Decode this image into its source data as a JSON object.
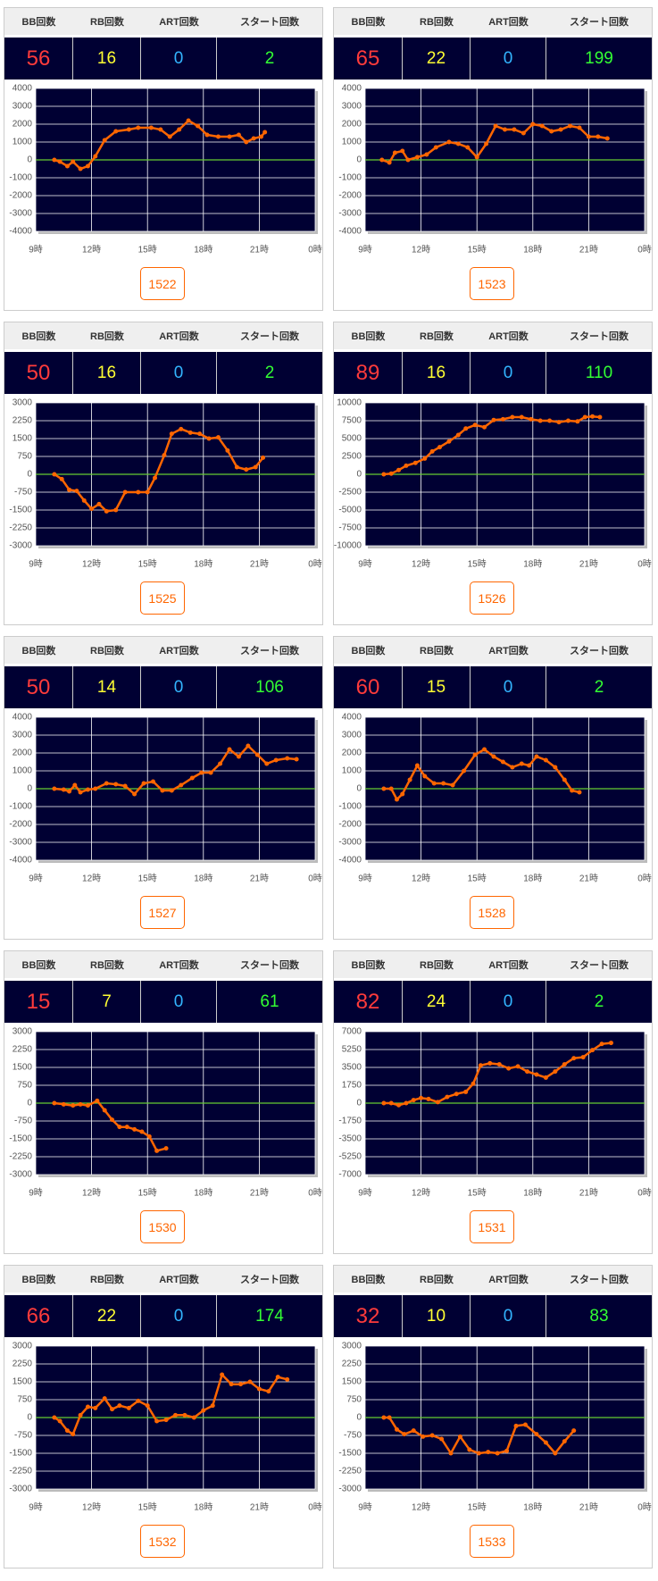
{
  "headers": [
    "BB回数",
    "RB回数",
    "ART回数",
    "スタート回数"
  ],
  "stat_colors": [
    "#ff3b3b",
    "#ffff33",
    "#33b5ff",
    "#33ff33"
  ],
  "line_color": "#ff6600",
  "plot_color": "#000033",
  "zero_line_color": "#66cc33",
  "xlim": [
    9,
    24
  ],
  "xticks": [
    {
      "value": 9,
      "label": "9時"
    },
    {
      "value": 12,
      "label": "12時"
    },
    {
      "value": 15,
      "label": "15時"
    },
    {
      "value": 18,
      "label": "18時"
    },
    {
      "value": 21,
      "label": "21時"
    },
    {
      "value": 24,
      "label": "0時"
    }
  ],
  "cards": [
    {
      "stats": [
        56,
        16,
        0,
        2
      ],
      "button": "1522",
      "chart": {
        "type": "line",
        "ylim": [
          -4000,
          4000
        ],
        "yticks": [
          -4000,
          -3000,
          -2000,
          -1000,
          0,
          1000,
          2000,
          3000,
          4000
        ],
        "x": [
          10,
          10.3,
          10.7,
          11,
          11.4,
          11.8,
          12.2,
          12.7,
          13.3,
          14,
          14.5,
          15.2,
          15.7,
          16.2,
          16.7,
          17.2,
          17.7,
          18.2,
          18.8,
          19.4,
          19.9,
          20.3,
          20.7,
          21.1,
          21.3
        ],
        "values": [
          0,
          -100,
          -350,
          -100,
          -500,
          -350,
          200,
          1100,
          1600,
          1700,
          1800,
          1800,
          1700,
          1300,
          1700,
          2200,
          1900,
          1400,
          1300,
          1300,
          1400,
          1000,
          1200,
          1300,
          1550
        ]
      }
    },
    {
      "stats": [
        65,
        22,
        0,
        199
      ],
      "button": "1523",
      "chart": {
        "type": "line",
        "ylim": [
          -4000,
          4000
        ],
        "yticks": [
          -4000,
          -3000,
          -2000,
          -1000,
          0,
          1000,
          2000,
          3000,
          4000
        ],
        "x": [
          9.9,
          10.3,
          10.6,
          11,
          11.3,
          11.8,
          12.3,
          12.8,
          13.5,
          14,
          14.5,
          15,
          15.5,
          16,
          16.5,
          17,
          17.5,
          18,
          18.5,
          19,
          19.5,
          20,
          20.5,
          21,
          21.5,
          22
        ],
        "values": [
          0,
          -150,
          400,
          500,
          0,
          150,
          300,
          700,
          1000,
          900,
          700,
          150,
          900,
          1900,
          1700,
          1700,
          1500,
          2000,
          1900,
          1600,
          1700,
          1900,
          1800,
          1300,
          1300,
          1200
        ]
      }
    },
    {
      "stats": [
        50,
        16,
        0,
        2
      ],
      "button": "1525",
      "chart": {
        "type": "line",
        "ylim": [
          -3000,
          3000
        ],
        "yticks": [
          -3000,
          -2250,
          -1500,
          -750,
          0,
          750,
          1500,
          2250,
          3000
        ],
        "x": [
          10,
          10.4,
          10.8,
          11.2,
          11.6,
          12,
          12.4,
          12.8,
          13.3,
          13.8,
          14.5,
          15,
          15.4,
          15.9,
          16.3,
          16.8,
          17.3,
          17.8,
          18.3,
          18.8,
          19.3,
          19.8,
          20.3,
          20.8,
          21.2
        ],
        "values": [
          0,
          -200,
          -650,
          -700,
          -1100,
          -1450,
          -1250,
          -1550,
          -1500,
          -750,
          -750,
          -750,
          -150,
          800,
          1700,
          1900,
          1750,
          1700,
          1500,
          1550,
          1000,
          300,
          200,
          300,
          700
        ]
      }
    },
    {
      "stats": [
        89,
        16,
        0,
        110
      ],
      "button": "1526",
      "chart": {
        "type": "line",
        "ylim": [
          -10000,
          10000
        ],
        "yticks": [
          -10000,
          -7500,
          -5000,
          -2500,
          0,
          2500,
          5000,
          7500,
          10000
        ],
        "x": [
          10,
          10.4,
          10.8,
          11.2,
          11.7,
          12.2,
          12.6,
          13,
          13.5,
          14,
          14.4,
          14.9,
          15.4,
          15.9,
          16.4,
          16.9,
          17.4,
          17.9,
          18.4,
          18.9,
          19.4,
          19.9,
          20.4,
          20.8,
          21.2,
          21.6
        ],
        "values": [
          0,
          100,
          600,
          1200,
          1600,
          2200,
          3200,
          3800,
          4600,
          5500,
          6400,
          6900,
          6600,
          7600,
          7700,
          8000,
          8000,
          7700,
          7500,
          7500,
          7300,
          7500,
          7400,
          8000,
          8100,
          8000
        ]
      }
    },
    {
      "stats": [
        50,
        14,
        0,
        106
      ],
      "button": "1527",
      "chart": {
        "type": "line",
        "ylim": [
          -4000,
          4000
        ],
        "yticks": [
          -4000,
          -3000,
          -2000,
          -1000,
          0,
          1000,
          2000,
          3000,
          4000
        ],
        "x": [
          10,
          10.5,
          10.8,
          11.1,
          11.4,
          11.8,
          12.2,
          12.8,
          13.3,
          13.8,
          14.3,
          14.8,
          15.3,
          15.8,
          16.3,
          16.8,
          17.4,
          17.9,
          18.4,
          18.9,
          19.4,
          19.9,
          20.4,
          20.9,
          21.4,
          21.9,
          22.5,
          23
        ],
        "values": [
          0,
          -50,
          -150,
          200,
          -200,
          -50,
          0,
          300,
          250,
          150,
          -300,
          300,
          400,
          -100,
          -100,
          200,
          600,
          900,
          900,
          1400,
          2200,
          1800,
          2400,
          1900,
          1400,
          1600,
          1700,
          1650
        ]
      }
    },
    {
      "stats": [
        60,
        15,
        0,
        2
      ],
      "button": "1528",
      "chart": {
        "type": "line",
        "ylim": [
          -4000,
          4000
        ],
        "yticks": [
          -4000,
          -3000,
          -2000,
          -1000,
          0,
          1000,
          2000,
          3000,
          4000
        ],
        "x": [
          10,
          10.4,
          10.7,
          11,
          11.4,
          11.8,
          12.2,
          12.7,
          13.2,
          13.7,
          14.3,
          14.9,
          15.4,
          15.9,
          16.4,
          16.9,
          17.4,
          17.8,
          18.2,
          18.7,
          19.2,
          19.7,
          20.1,
          20.5
        ],
        "values": [
          0,
          0,
          -600,
          -300,
          500,
          1300,
          700,
          300,
          300,
          200,
          1000,
          1900,
          2200,
          1800,
          1500,
          1200,
          1400,
          1300,
          1800,
          1600,
          1200,
          500,
          -100,
          -200
        ]
      }
    },
    {
      "stats": [
        15,
        7,
        0,
        61
      ],
      "button": "1530",
      "chart": {
        "type": "line",
        "ylim": [
          -3000,
          3000
        ],
        "yticks": [
          -3000,
          -2250,
          -1500,
          -750,
          0,
          750,
          1500,
          2250,
          3000
        ],
        "x": [
          10,
          10.5,
          11,
          11.4,
          11.8,
          12.3,
          12.7,
          13.1,
          13.5,
          13.9,
          14.3,
          14.7,
          15.1,
          15.5,
          16
        ],
        "values": [
          0,
          -50,
          -100,
          -50,
          -100,
          100,
          -300,
          -700,
          -1000,
          -1000,
          -1100,
          -1200,
          -1400,
          -2000,
          -1900
        ]
      }
    },
    {
      "stats": [
        82,
        24,
        0,
        2
      ],
      "button": "1531",
      "chart": {
        "type": "line",
        "ylim": [
          -7000,
          7000
        ],
        "yticks": [
          -7000,
          -5250,
          -3500,
          -1750,
          0,
          1750,
          3500,
          5250,
          7000
        ],
        "x": [
          10,
          10.4,
          10.8,
          11.2,
          11.6,
          12,
          12.4,
          12.9,
          13.4,
          13.9,
          14.4,
          14.8,
          15.2,
          15.7,
          16.2,
          16.7,
          17.2,
          17.7,
          18.2,
          18.7,
          19.2,
          19.7,
          20.2,
          20.7,
          21.2,
          21.7,
          22.2
        ],
        "values": [
          0,
          0,
          -200,
          0,
          300,
          500,
          400,
          100,
          600,
          900,
          1100,
          1900,
          3700,
          3900,
          3800,
          3400,
          3600,
          3100,
          2800,
          2500,
          3100,
          3800,
          4400,
          4500,
          5200,
          5800,
          5900
        ]
      }
    },
    {
      "stats": [
        66,
        22,
        0,
        174
      ],
      "button": "1532",
      "chart": {
        "type": "line",
        "ylim": [
          -3000,
          3000
        ],
        "yticks": [
          -3000,
          -2250,
          -1500,
          -750,
          0,
          750,
          1500,
          2250,
          3000
        ],
        "x": [
          10,
          10.3,
          10.7,
          11,
          11.4,
          11.8,
          12.2,
          12.7,
          13.1,
          13.5,
          14,
          14.5,
          15,
          15.5,
          16,
          16.5,
          17,
          17.5,
          18,
          18.5,
          19,
          19.5,
          20,
          20.5,
          21,
          21.5,
          22,
          22.5
        ],
        "values": [
          0,
          -150,
          -550,
          -700,
          100,
          450,
          400,
          800,
          350,
          500,
          400,
          700,
          500,
          -150,
          -100,
          100,
          100,
          0,
          300,
          500,
          1800,
          1400,
          1400,
          1500,
          1200,
          1100,
          1700,
          1600
        ]
      }
    },
    {
      "stats": [
        32,
        10,
        0,
        83
      ],
      "button": "1533",
      "chart": {
        "type": "line",
        "ylim": [
          -3000,
          3000
        ],
        "yticks": [
          -3000,
          -2250,
          -1500,
          -750,
          0,
          750,
          1500,
          2250,
          3000
        ],
        "x": [
          10,
          10.3,
          10.7,
          11.1,
          11.6,
          12.1,
          12.6,
          13.1,
          13.6,
          14.1,
          14.6,
          15.1,
          15.6,
          16.1,
          16.6,
          17.1,
          17.6,
          18.2,
          18.7,
          19.2,
          19.7,
          20.2
        ],
        "values": [
          0,
          0,
          -500,
          -700,
          -550,
          -800,
          -750,
          -900,
          -1500,
          -800,
          -1350,
          -1500,
          -1450,
          -1500,
          -1400,
          -350,
          -300,
          -700,
          -1050,
          -1500,
          -1000,
          -550
        ]
      }
    }
  ]
}
